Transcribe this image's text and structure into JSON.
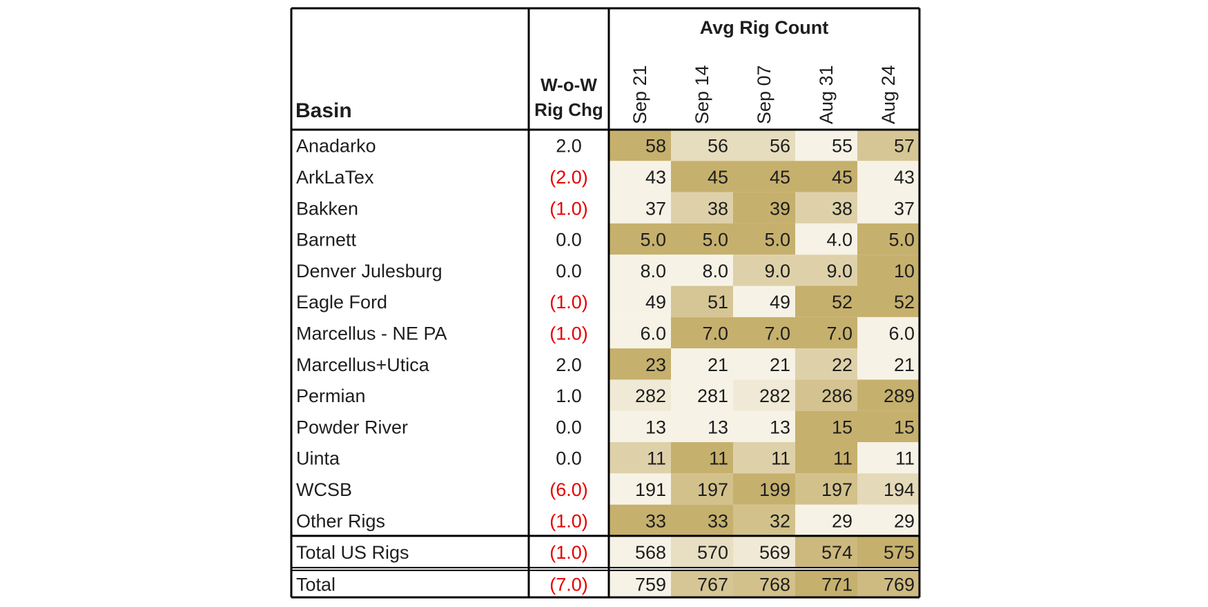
{
  "chart_data": {
    "type": "table",
    "header": {
      "basin": "Basin",
      "wow_line1": "W-o-W",
      "wow_line2": "Rig Chg",
      "group": "Avg Rig Count",
      "dates": [
        "Sep 21",
        "Sep 14",
        "Sep 07",
        "Aug 31",
        "Aug 24"
      ]
    },
    "rows": [
      {
        "basin": "Anadarko",
        "wow": "2.0",
        "negative": false,
        "values": [
          "58",
          "56",
          "56",
          "55",
          "57"
        ],
        "shade": [
          1.0,
          0.33,
          0.33,
          0.0,
          0.67
        ]
      },
      {
        "basin": "ArkLaTex",
        "wow": "(2.0)",
        "negative": true,
        "values": [
          "43",
          "45",
          "45",
          "45",
          "43"
        ],
        "shade": [
          0.0,
          1.0,
          1.0,
          1.0,
          0.0
        ]
      },
      {
        "basin": "Bakken",
        "wow": "(1.0)",
        "negative": true,
        "values": [
          "37",
          "38",
          "39",
          "38",
          "37"
        ],
        "shade": [
          0.0,
          0.5,
          1.0,
          0.5,
          0.0
        ]
      },
      {
        "basin": "Barnett",
        "wow": "0.0",
        "negative": false,
        "values": [
          "5.0",
          "5.0",
          "5.0",
          "4.0",
          "5.0"
        ],
        "shade": [
          1.0,
          1.0,
          1.0,
          0.0,
          1.0
        ]
      },
      {
        "basin": "Denver Julesburg",
        "wow": "0.0",
        "negative": false,
        "values": [
          "8.0",
          "8.0",
          "9.0",
          "9.0",
          "10"
        ],
        "shade": [
          0.0,
          0.0,
          0.5,
          0.5,
          1.0
        ]
      },
      {
        "basin": "Eagle Ford",
        "wow": "(1.0)",
        "negative": true,
        "values": [
          "49",
          "51",
          "49",
          "52",
          "52"
        ],
        "shade": [
          0.0,
          0.67,
          0.0,
          1.0,
          1.0
        ]
      },
      {
        "basin": "Marcellus - NE PA",
        "wow": "(1.0)",
        "negative": true,
        "values": [
          "6.0",
          "7.0",
          "7.0",
          "7.0",
          "6.0"
        ],
        "shade": [
          0.0,
          1.0,
          1.0,
          1.0,
          0.0
        ]
      },
      {
        "basin": "Marcellus+Utica",
        "wow": "2.0",
        "negative": false,
        "values": [
          "23",
          "21",
          "21",
          "22",
          "21"
        ],
        "shade": [
          1.0,
          0.0,
          0.0,
          0.5,
          0.0
        ]
      },
      {
        "basin": "Permian",
        "wow": "1.0",
        "negative": false,
        "values": [
          "282",
          "281",
          "282",
          "286",
          "289"
        ],
        "shade": [
          0.14,
          0.0,
          0.14,
          0.71,
          1.0
        ]
      },
      {
        "basin": "Powder River",
        "wow": "0.0",
        "negative": false,
        "values": [
          "13",
          "13",
          "13",
          "15",
          "15"
        ],
        "shade": [
          0.0,
          0.0,
          0.0,
          1.0,
          1.0
        ]
      },
      {
        "basin": "Uinta",
        "wow": "0.0",
        "negative": false,
        "values": [
          "11",
          "11",
          "11",
          "11",
          "11"
        ],
        "shade": [
          0.5,
          1.0,
          0.5,
          1.0,
          0.0
        ]
      },
      {
        "basin": "WCSB",
        "wow": "(6.0)",
        "negative": true,
        "values": [
          "191",
          "197",
          "199",
          "197",
          "194"
        ],
        "shade": [
          0.0,
          0.75,
          1.0,
          0.75,
          0.38
        ]
      },
      {
        "basin": "Other Rigs",
        "wow": "(1.0)",
        "negative": true,
        "values": [
          "33",
          "33",
          "32",
          "29",
          "29"
        ],
        "shade": [
          1.0,
          1.0,
          0.75,
          0.0,
          0.0
        ]
      }
    ],
    "subtotal": {
      "basin": "Total US Rigs",
      "wow": "(1.0)",
      "negative": true,
      "values": [
        "568",
        "570",
        "569",
        "574",
        "575"
      ],
      "shade": [
        0.0,
        0.29,
        0.14,
        0.86,
        1.0
      ]
    },
    "total": {
      "basin": "Total",
      "wow": "(7.0)",
      "negative": true,
      "values": [
        "759",
        "767",
        "768",
        "771",
        "769"
      ],
      "shade": [
        0.0,
        0.67,
        0.75,
        1.0,
        0.83
      ]
    },
    "colors": {
      "shade_low": "#f6f2e6",
      "shade_high": "#c6b06d",
      "negative_text": "#e60000",
      "text": "#1e1e1e",
      "border": "#000000"
    }
  }
}
